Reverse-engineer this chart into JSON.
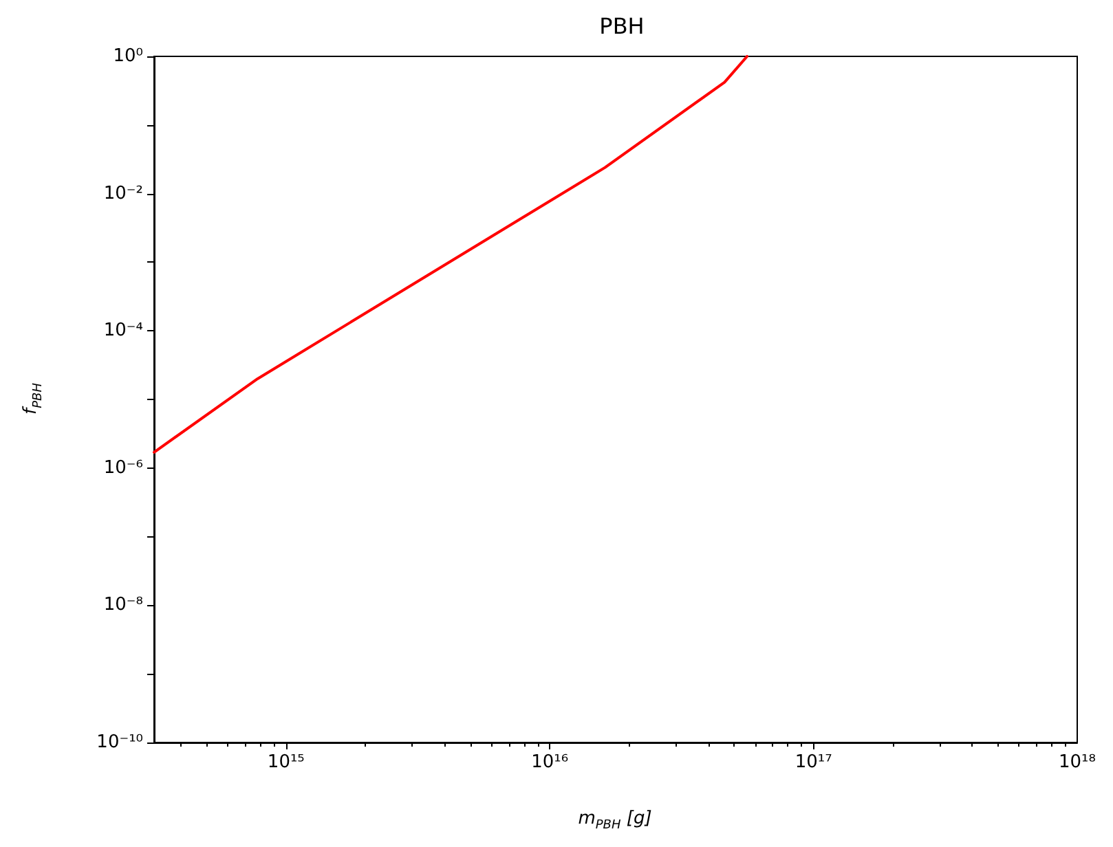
{
  "chart_data": {
    "type": "line",
    "title": "PBH",
    "xlabel": "m$_{PBH}$ [g]",
    "ylabel": "f$_{PBH}$",
    "log": "xy",
    "grid": false,
    "marker": "none",
    "line_style": "solid",
    "x": [
      316000000000000.0,
      780000000000000.0,
      1.62e+16,
      4.6e+16,
      5.6e+16
    ],
    "series": [
      {
        "color": "#ff0000",
        "values": [
          1.7e-06,
          2e-05,
          0.024,
          0.42,
          1.0
        ]
      }
    ],
    "xlim": [
      316000000000000.0,
      1e+18
    ],
    "xticks": [
      {
        "value": 1000000000000000.0,
        "label": "10¹⁵"
      },
      {
        "value": 1e+16,
        "label": "10¹⁶"
      },
      {
        "value": 1e+17,
        "label": "10¹⁷"
      },
      {
        "value": 1e+18,
        "label": "10¹⁸"
      }
    ],
    "ylim": [
      1e-10,
      1
    ],
    "yticks": [
      {
        "value": 1e-10,
        "label": "10⁻¹⁰"
      },
      {
        "value": 1e-09,
        "label": null
      },
      {
        "value": 1e-08,
        "label": "10⁻⁸"
      },
      {
        "value": 1e-07,
        "label": null
      },
      {
        "value": 1e-06,
        "label": "10⁻⁶"
      },
      {
        "value": 1e-05,
        "label": null
      },
      {
        "value": 0.0001,
        "label": "10⁻⁴"
      },
      {
        "value": 0.001,
        "label": null
      },
      {
        "value": 0.01,
        "label": "10⁻²"
      },
      {
        "value": 0.1,
        "label": null
      },
      {
        "value": 1,
        "label": "10⁰"
      }
    ]
  }
}
